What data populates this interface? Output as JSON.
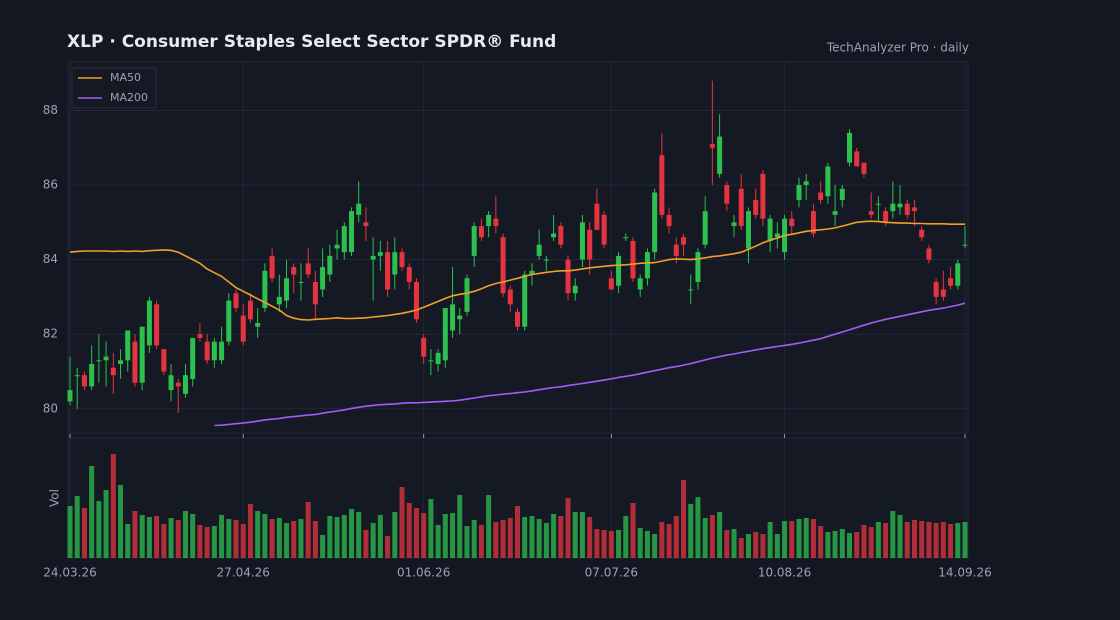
{
  "chart_data": {
    "type": "candlestick",
    "title": "XLP  ·  Consumer Staples Select Sector SPDR® Fund",
    "subtitle": "TechAnalyzer Pro · daily",
    "volume_label": "Vol",
    "categories": [
      "24.03.26",
      null,
      null,
      null,
      null,
      null,
      null,
      null,
      null,
      null,
      null,
      null,
      null,
      null,
      null,
      null,
      null,
      null,
      null,
      null,
      null,
      null,
      null,
      null,
      "27.04.26",
      null,
      null,
      null,
      null,
      null,
      null,
      null,
      null,
      null,
      null,
      null,
      null,
      null,
      null,
      null,
      null,
      null,
      null,
      null,
      null,
      null,
      null,
      null,
      null,
      "01.06.26",
      null,
      null,
      null,
      null,
      null,
      null,
      null,
      null,
      null,
      null,
      null,
      null,
      null,
      null,
      null,
      null,
      null,
      null,
      null,
      null,
      null,
      null,
      null,
      null,
      null,
      "07.07.26",
      null,
      null,
      null,
      null,
      null,
      null,
      null,
      null,
      null,
      null,
      null,
      null,
      null,
      null,
      null,
      null,
      null,
      null,
      null,
      null,
      null,
      null,
      null,
      "10.08.26",
      null,
      null,
      null,
      null,
      null,
      null,
      null,
      null,
      null,
      null,
      null,
      null,
      null,
      null,
      null,
      null,
      null,
      null,
      null,
      null,
      null,
      null,
      null,
      null,
      "14.09.26"
    ],
    "ohlc": [
      [
        80.2,
        81.4,
        80.1,
        80.5
      ],
      [
        80.9,
        81.1,
        80.0,
        80.9
      ],
      [
        80.9,
        81.0,
        80.5,
        80.6
      ],
      [
        80.6,
        81.7,
        80.5,
        81.2
      ],
      [
        81.3,
        82.0,
        80.7,
        81.3
      ],
      [
        81.3,
        81.8,
        80.6,
        81.4
      ],
      [
        81.1,
        81.5,
        80.4,
        80.9
      ],
      [
        81.2,
        81.6,
        80.8,
        81.3
      ],
      [
        81.3,
        82.1,
        81.0,
        82.1
      ],
      [
        81.8,
        82.0,
        80.6,
        80.7
      ],
      [
        80.7,
        82.2,
        80.5,
        82.2
      ],
      [
        81.7,
        83.0,
        81.5,
        82.9
      ],
      [
        82.8,
        82.9,
        81.6,
        81.7
      ],
      [
        81.6,
        81.6,
        80.9,
        81.0
      ],
      [
        80.5,
        81.2,
        80.2,
        80.9
      ],
      [
        80.7,
        80.8,
        79.9,
        80.6
      ],
      [
        80.4,
        81.2,
        80.3,
        80.9
      ],
      [
        80.8,
        81.9,
        80.6,
        81.9
      ],
      [
        82.0,
        82.3,
        81.8,
        81.9
      ],
      [
        81.8,
        82.0,
        81.2,
        81.3
      ],
      [
        81.3,
        81.9,
        81.1,
        81.8
      ],
      [
        81.3,
        82.2,
        81.2,
        81.8
      ],
      [
        81.8,
        83.1,
        81.7,
        82.9
      ],
      [
        83.1,
        83.2,
        82.6,
        82.7
      ],
      [
        82.5,
        82.8,
        81.7,
        81.8
      ],
      [
        82.9,
        83.1,
        82.3,
        82.4
      ],
      [
        82.2,
        82.7,
        81.9,
        82.3
      ],
      [
        82.7,
        83.9,
        82.6,
        83.7
      ],
      [
        84.1,
        84.3,
        83.4,
        83.5
      ],
      [
        82.8,
        83.6,
        82.6,
        83.0
      ],
      [
        82.9,
        84.0,
        82.7,
        83.5
      ],
      [
        83.8,
        83.9,
        83.1,
        83.6
      ],
      [
        83.4,
        83.9,
        82.9,
        83.4
      ],
      [
        83.9,
        84.3,
        83.5,
        83.6
      ],
      [
        83.4,
        83.7,
        82.4,
        82.8
      ],
      [
        83.2,
        84.3,
        83.0,
        83.8
      ],
      [
        83.6,
        84.4,
        83.4,
        84.1
      ],
      [
        84.3,
        84.8,
        84.0,
        84.4
      ],
      [
        84.2,
        85.0,
        84.0,
        84.9
      ],
      [
        84.2,
        85.4,
        84.1,
        85.3
      ],
      [
        85.2,
        86.1,
        85.0,
        85.5
      ],
      [
        85.0,
        85.4,
        84.5,
        84.9
      ],
      [
        84.0,
        84.6,
        82.9,
        84.1
      ],
      [
        84.1,
        84.5,
        83.7,
        84.2
      ],
      [
        84.2,
        84.5,
        83.0,
        83.2
      ],
      [
        83.6,
        84.6,
        83.2,
        84.2
      ],
      [
        84.2,
        84.3,
        83.7,
        83.8
      ],
      [
        83.8,
        83.9,
        83.2,
        83.4
      ],
      [
        83.4,
        83.5,
        82.3,
        82.4
      ],
      [
        81.9,
        82.0,
        81.2,
        81.4
      ],
      [
        81.3,
        81.6,
        80.9,
        81.3
      ],
      [
        81.2,
        81.6,
        81.0,
        81.5
      ],
      [
        81.3,
        82.7,
        81.1,
        82.7
      ],
      [
        82.1,
        83.8,
        81.9,
        82.8
      ],
      [
        82.4,
        82.7,
        82.0,
        82.5
      ],
      [
        82.6,
        83.6,
        82.5,
        83.5
      ],
      [
        84.1,
        85.0,
        83.8,
        84.9
      ],
      [
        84.9,
        85.1,
        84.5,
        84.6
      ],
      [
        84.9,
        85.3,
        84.6,
        85.2
      ],
      [
        85.1,
        85.7,
        84.7,
        84.9
      ],
      [
        84.6,
        84.7,
        83.0,
        83.1
      ],
      [
        83.2,
        83.3,
        82.6,
        82.8
      ],
      [
        82.6,
        82.7,
        82.1,
        82.2
      ],
      [
        82.2,
        83.7,
        82.1,
        83.6
      ],
      [
        83.6,
        83.9,
        83.3,
        83.7
      ],
      [
        84.1,
        84.8,
        84.0,
        84.4
      ],
      [
        84.0,
        84.1,
        83.7,
        84.0
      ],
      [
        84.6,
        85.2,
        84.5,
        84.7
      ],
      [
        84.9,
        85.0,
        84.3,
        84.4
      ],
      [
        84.0,
        84.1,
        82.9,
        83.1
      ],
      [
        83.1,
        83.5,
        82.9,
        83.3
      ],
      [
        84.0,
        85.2,
        83.8,
        85.0
      ],
      [
        84.8,
        85.0,
        83.6,
        84.0
      ],
      [
        85.5,
        85.9,
        84.8,
        84.8
      ],
      [
        85.2,
        85.3,
        84.3,
        84.4
      ],
      [
        83.5,
        83.7,
        83.2,
        83.2
      ],
      [
        83.3,
        84.2,
        83.1,
        84.1
      ],
      [
        84.6,
        84.7,
        84.5,
        84.6
      ],
      [
        84.5,
        84.6,
        83.4,
        83.5
      ],
      [
        83.2,
        83.6,
        83.0,
        83.5
      ],
      [
        83.5,
        84.3,
        83.3,
        84.2
      ],
      [
        84.2,
        85.9,
        84.0,
        85.8
      ],
      [
        86.8,
        87.4,
        85.1,
        85.2
      ],
      [
        85.2,
        85.4,
        84.7,
        84.9
      ],
      [
        84.4,
        84.6,
        83.9,
        84.1
      ],
      [
        84.6,
        84.7,
        84.1,
        84.4
      ],
      [
        83.2,
        83.6,
        82.8,
        83.2
      ],
      [
        83.4,
        84.3,
        83.2,
        84.2
      ],
      [
        84.4,
        85.7,
        84.3,
        85.3
      ],
      [
        87.1,
        88.8,
        86.0,
        87.0
      ],
      [
        86.3,
        87.9,
        86.2,
        87.3
      ],
      [
        86.0,
        86.1,
        85.3,
        85.5
      ],
      [
        84.9,
        85.2,
        84.6,
        85.0
      ],
      [
        85.9,
        86.3,
        84.8,
        84.9
      ],
      [
        84.3,
        85.4,
        83.9,
        85.3
      ],
      [
        85.6,
        85.9,
        85.1,
        85.2
      ],
      [
        86.3,
        86.4,
        84.9,
        85.1
      ],
      [
        84.5,
        85.2,
        84.2,
        85.1
      ],
      [
        84.6,
        85.0,
        84.3,
        84.7
      ],
      [
        84.2,
        85.2,
        84.0,
        85.1
      ],
      [
        85.1,
        85.3,
        84.7,
        84.9
      ],
      [
        85.6,
        86.2,
        85.4,
        86.0
      ],
      [
        86.0,
        86.3,
        85.6,
        86.1
      ],
      [
        85.3,
        85.5,
        84.6,
        84.7
      ],
      [
        85.8,
        86.1,
        85.5,
        85.6
      ],
      [
        85.7,
        86.6,
        85.5,
        86.5
      ],
      [
        85.2,
        86.0,
        84.9,
        85.3
      ],
      [
        85.6,
        86.0,
        85.4,
        85.9
      ],
      [
        86.6,
        87.5,
        86.5,
        87.4
      ],
      [
        86.9,
        87.0,
        86.5,
        86.5
      ],
      [
        86.6,
        86.6,
        86.2,
        86.3
      ],
      [
        85.3,
        85.8,
        85.1,
        85.2
      ],
      [
        85.5,
        85.7,
        85.0,
        85.5
      ],
      [
        85.3,
        85.4,
        84.9,
        85.0
      ],
      [
        85.3,
        86.1,
        85.1,
        85.5
      ],
      [
        85.4,
        86.0,
        85.2,
        85.5
      ],
      [
        85.5,
        85.6,
        85.1,
        85.2
      ],
      [
        85.4,
        85.6,
        84.9,
        85.3
      ],
      [
        84.8,
        84.9,
        84.5,
        84.6
      ],
      [
        84.3,
        84.4,
        83.9,
        84.0
      ],
      [
        83.4,
        83.5,
        82.8,
        83.0
      ],
      [
        83.2,
        83.7,
        82.9,
        83.0
      ],
      [
        83.5,
        83.8,
        83.2,
        83.3
      ],
      [
        83.3,
        84.0,
        83.2,
        83.9
      ],
      [
        84.4,
        84.9,
        84.3,
        84.4
      ]
    ],
    "volume": [
      5.2,
      6.2,
      5.0,
      9.2,
      5.7,
      6.8,
      10.4,
      7.3,
      3.4,
      4.7,
      4.3,
      4.1,
      4.2,
      3.4,
      4.0,
      3.8,
      4.7,
      4.4,
      3.3,
      3.1,
      3.2,
      4.3,
      3.9,
      3.8,
      3.4,
      5.4,
      4.7,
      4.4,
      3.9,
      4.0,
      3.5,
      3.7,
      3.9,
      5.6,
      3.7,
      2.3,
      4.2,
      4.1,
      4.3,
      4.9,
      4.6,
      2.8,
      3.5,
      4.3,
      2.2,
      4.6,
      7.1,
      5.5,
      5.0,
      4.5,
      5.9,
      3.3,
      4.4,
      4.5,
      6.3,
      3.2,
      3.8,
      3.3,
      6.3,
      3.6,
      3.8,
      4.0,
      5.2,
      4.1,
      4.2,
      3.9,
      3.5,
      4.4,
      4.2,
      6.0,
      4.6,
      4.6,
      4.1,
      2.9,
      2.8,
      2.7,
      2.8,
      4.2,
      5.5,
      3.0,
      2.7,
      2.4,
      3.6,
      3.4,
      4.2,
      7.8,
      5.4,
      6.1,
      4.0,
      4.3,
      4.6,
      2.8,
      2.9,
      2.0,
      2.4,
      2.6,
      2.4,
      3.6,
      2.4,
      3.7,
      3.7,
      3.9,
      4.0,
      3.9,
      3.2,
      2.6,
      2.7,
      2.9,
      2.5,
      2.6,
      3.3,
      3.1,
      3.6,
      3.5,
      4.7,
      4.3,
      3.6,
      3.8,
      3.7,
      3.6,
      3.5,
      3.6,
      3.4,
      3.5,
      3.6
    ],
    "series": [
      {
        "name": "MA50",
        "color": "#f0a02a",
        "values": [
          84.2,
          84.22,
          84.23,
          84.23,
          84.23,
          84.23,
          84.22,
          84.23,
          84.22,
          84.23,
          84.22,
          84.24,
          84.25,
          84.26,
          84.25,
          84.2,
          84.1,
          84.0,
          83.9,
          83.75,
          83.65,
          83.55,
          83.4,
          83.25,
          83.15,
          83.05,
          82.95,
          82.85,
          82.75,
          82.65,
          82.5,
          82.43,
          82.39,
          82.38,
          82.4,
          82.41,
          82.42,
          82.44,
          82.42,
          82.42,
          82.43,
          82.44,
          82.46,
          82.48,
          82.5,
          82.53,
          82.56,
          82.6,
          82.65,
          82.72,
          82.8,
          82.88,
          82.96,
          83.03,
          83.07,
          83.1,
          83.15,
          83.22,
          83.3,
          83.36,
          83.4,
          83.45,
          83.5,
          83.55,
          83.6,
          83.63,
          83.66,
          83.68,
          83.7,
          83.7,
          83.72,
          83.75,
          83.78,
          83.8,
          83.82,
          83.84,
          83.85,
          83.86,
          83.88,
          83.9,
          83.91,
          83.92,
          83.96,
          84.0,
          84.02,
          84.01,
          84.0,
          84.02,
          84.05,
          84.08,
          84.1,
          84.13,
          84.16,
          84.2,
          84.28,
          84.36,
          84.45,
          84.52,
          84.58,
          84.65,
          84.68,
          84.72,
          84.76,
          84.78,
          84.8,
          84.82,
          84.85,
          84.9,
          84.95,
          85.0,
          85.02,
          85.03,
          85.02,
          85.0,
          84.99,
          84.98,
          84.98,
          84.97,
          84.97,
          84.96,
          84.96,
          84.96,
          84.95,
          84.95,
          84.95
        ]
      },
      {
        "name": "MA200",
        "color": "#a45cf2",
        "values": [
          null,
          null,
          null,
          null,
          null,
          null,
          null,
          null,
          null,
          null,
          null,
          null,
          null,
          null,
          null,
          null,
          null,
          null,
          null,
          null,
          79.55,
          79.56,
          79.58,
          79.6,
          79.62,
          79.64,
          79.67,
          79.7,
          79.72,
          79.74,
          79.77,
          79.79,
          79.81,
          79.83,
          79.85,
          79.88,
          79.91,
          79.94,
          79.97,
          80.01,
          80.04,
          80.07,
          80.09,
          80.11,
          80.12,
          80.13,
          80.15,
          80.16,
          80.16,
          80.17,
          80.18,
          80.19,
          80.2,
          80.21,
          80.23,
          80.26,
          80.29,
          80.32,
          80.35,
          80.37,
          80.39,
          80.41,
          80.43,
          80.45,
          80.48,
          80.51,
          80.54,
          80.57,
          80.59,
          80.62,
          80.65,
          80.68,
          80.71,
          80.74,
          80.77,
          80.8,
          80.84,
          80.87,
          80.9,
          80.94,
          80.98,
          81.02,
          81.06,
          81.1,
          81.13,
          81.17,
          81.21,
          81.26,
          81.31,
          81.36,
          81.4,
          81.44,
          81.47,
          81.51,
          81.54,
          81.58,
          81.61,
          81.64,
          81.67,
          81.7,
          81.73,
          81.76,
          81.8,
          81.84,
          81.88,
          81.94,
          82.0,
          82.06,
          82.12,
          82.18,
          82.24,
          82.3,
          82.35,
          82.4,
          82.44,
          82.48,
          82.52,
          82.56,
          82.6,
          82.64,
          82.67,
          82.7,
          82.74,
          82.78,
          82.83
        ]
      }
    ],
    "up_color": "#2cc04f",
    "down_color": "#e5343f",
    "ylim": [
      79.35,
      89.3
    ],
    "yticks": [
      80,
      82,
      84,
      86,
      88
    ],
    "volume_ylim": [
      0,
      12
    ],
    "grid": true,
    "legend": "upper left"
  }
}
